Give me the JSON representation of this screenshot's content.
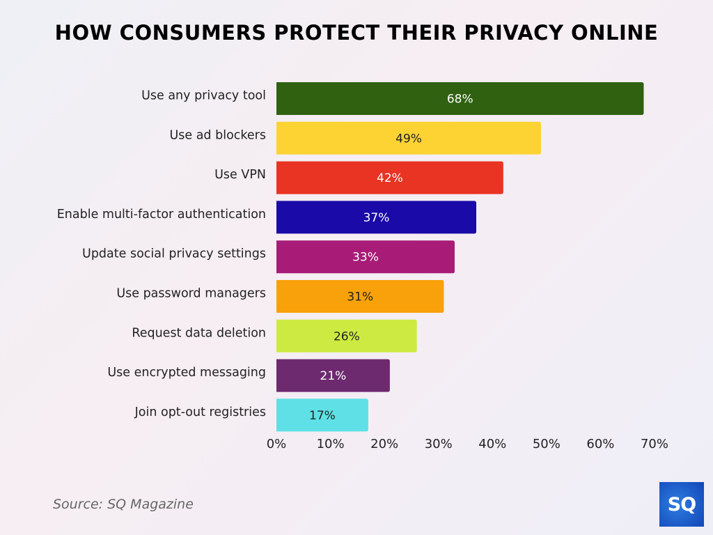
{
  "chart_data": {
    "type": "bar",
    "orientation": "horizontal",
    "title": "HOW CONSUMERS PROTECT THEIR PRIVACY ONLINE",
    "categories": [
      "Use any privacy tool",
      "Use ad blockers",
      "Use VPN",
      "Enable multi-factor authentication",
      "Update social privacy settings",
      "Use password managers",
      "Request data deletion",
      "Use encrypted messaging",
      "Join opt-out registries"
    ],
    "values": [
      68,
      49,
      42,
      37,
      33,
      31,
      26,
      21,
      17
    ],
    "data_labels": [
      "68%",
      "49%",
      "42%",
      "37%",
      "33%",
      "31%",
      "26%",
      "21%",
      "17%"
    ],
    "colors": [
      "#2f6111",
      "#fdd334",
      "#e93323",
      "#1a0aa8",
      "#a81c78",
      "#f9a10a",
      "#cdea42",
      "#6e2a6e",
      "#5fe0e6"
    ],
    "label_colors": [
      "#ffffff",
      "#222222",
      "#ffffff",
      "#ffffff",
      "#ffffff",
      "#222222",
      "#222222",
      "#ffffff",
      "#222222"
    ],
    "xlim": [
      0,
      70
    ],
    "xticks": [
      "0%",
      "10%",
      "20%",
      "30%",
      "40%",
      "50%",
      "60%",
      "70%"
    ],
    "grid": false,
    "xlabel": "",
    "ylabel": ""
  },
  "source": "Source: SQ Magazine",
  "logo_text": "SQ"
}
